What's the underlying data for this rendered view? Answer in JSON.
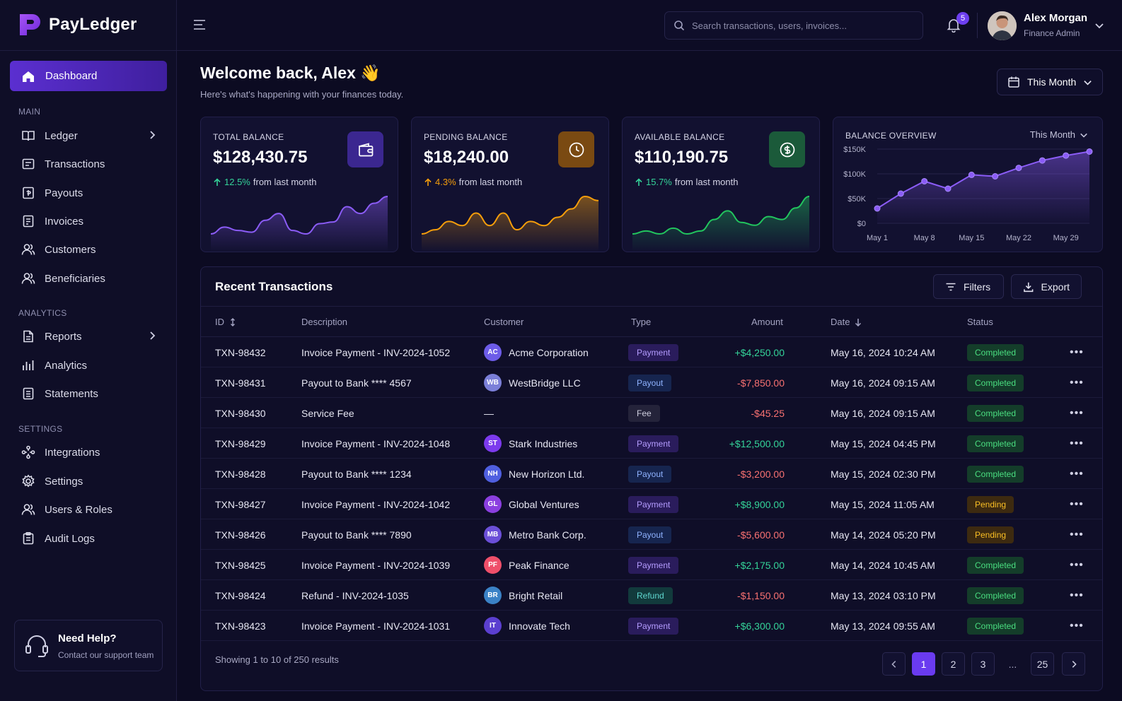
{
  "brand": {
    "name": "PayLedger"
  },
  "sidebar": {
    "active": {
      "label": "Dashboard",
      "icon": "home-icon"
    },
    "sections": {
      "main": "MAIN",
      "analytics": "ANALYTICS",
      "settings": "SETTINGS"
    },
    "items": {
      "ledger": "Ledger",
      "transactions": "Transactions",
      "payouts": "Payouts",
      "invoices": "Invoices",
      "customers": "Customers",
      "beneficiaries": "Beneficiaries",
      "reports": "Reports",
      "analytics": "Analytics",
      "statements": "Statements",
      "integrations": "Integrations",
      "settings": "Settings",
      "users_roles": "Users & Roles",
      "audit_logs": "Audit Logs"
    },
    "help": {
      "title": "Need Help?",
      "subtitle": "Contact our support team"
    }
  },
  "header": {
    "search_placeholder": "Search transactions, users, invoices...",
    "notification_count": "5",
    "user": {
      "name": "Alex Morgan",
      "role": "Finance Admin"
    }
  },
  "welcome": {
    "title": "Welcome back, Alex 👋",
    "subtitle": "Here's what's happening with your finances today.",
    "period": "This Month"
  },
  "cards": [
    {
      "label": "TOTAL BALANCE",
      "value": "$128,430.75",
      "delta": "12.5%",
      "delta_text": "from last month",
      "color": "#8b5cf6",
      "delta_color": "#34d399",
      "icon": "wallet-icon",
      "trend": [
        3,
        5,
        4,
        3.5,
        7,
        9,
        4,
        3,
        6,
        6.5,
        11,
        9,
        12,
        14
      ]
    },
    {
      "label": "PENDING BALANCE",
      "value": "$18,240.00",
      "delta": "4.3%",
      "delta_text": "from last month",
      "color": "#f59e0b",
      "delta_color": "#f59e0b",
      "icon": "clock-icon",
      "trend": [
        3,
        4,
        6,
        5,
        8,
        5,
        8,
        4,
        6,
        5,
        7,
        9,
        12,
        11
      ]
    },
    {
      "label": "AVAILABLE BALANCE",
      "value": "$110,190.75",
      "delta": "15.7%",
      "delta_text": "from last month",
      "color": "#22c55e",
      "delta_color": "#34d399",
      "icon": "dollar-icon",
      "trend": [
        4,
        5,
        4,
        6,
        4,
        5,
        9,
        12,
        8,
        7,
        10,
        9,
        13,
        17
      ]
    }
  ],
  "chart_data": {
    "type": "line",
    "title": "BALANCE OVERVIEW",
    "period": "This Month",
    "x": [
      "May 1",
      "May 4",
      "May 8",
      "May 11",
      "May 15",
      "May 18",
      "May 22",
      "May 25",
      "May 29",
      "May 31"
    ],
    "xticks": [
      "May 1",
      "May 8",
      "May 15",
      "May 22",
      "May 29"
    ],
    "yticks": [
      "$0",
      "$50K",
      "$100K",
      "$150K"
    ],
    "ylim": [
      0,
      150000
    ],
    "values": [
      30000,
      60000,
      85000,
      70000,
      98000,
      95000,
      112000,
      127000,
      137000,
      145000
    ],
    "color": "#8b5cf6"
  },
  "transactions": {
    "title": "Recent Transactions",
    "filters_label": "Filters",
    "export_label": "Export",
    "columns": {
      "id": "ID",
      "description": "Description",
      "customer": "Customer",
      "type": "Type",
      "amount": "Amount",
      "date": "Date",
      "status": "Status"
    },
    "rows": [
      {
        "id": "TXN-98432",
        "description": "Invoice Payment - INV-2024-1052",
        "initials": "AC",
        "avatar_color": "#6d5ce8",
        "customer": "Acme Corporation",
        "type": "Payment",
        "amount": "+$4,250.00",
        "amount_color": "#34d399",
        "date": "May 16, 2024 10:24 AM",
        "status": "Completed"
      },
      {
        "id": "TXN-98431",
        "description": "Payout to Bank **** 4567",
        "initials": "WB",
        "avatar_color": "#7b7fd8",
        "customer": "WestBridge LLC",
        "type": "Payout",
        "amount": "-$7,850.00",
        "amount_color": "#f87171",
        "date": "May 16, 2024 09:15 AM",
        "status": "Completed"
      },
      {
        "id": "TXN-98430",
        "description": "Service Fee",
        "initials": "",
        "avatar_color": "",
        "customer": "—",
        "type": "Fee",
        "amount": "-$45.25",
        "amount_color": "#f87171",
        "date": "May 16, 2024 09:15 AM",
        "status": "Completed"
      },
      {
        "id": "TXN-98429",
        "description": "Invoice Payment - INV-2024-1048",
        "initials": "ST",
        "avatar_color": "#7c3aed",
        "customer": "Stark Industries",
        "type": "Payment",
        "amount": "+$12,500.00",
        "amount_color": "#34d399",
        "date": "May 15, 2024 04:45 PM",
        "status": "Completed"
      },
      {
        "id": "TXN-98428",
        "description": "Payout to Bank **** 1234",
        "initials": "NH",
        "avatar_color": "#4f5fe0",
        "customer": "New Horizon Ltd.",
        "type": "Payout",
        "amount": "-$3,200.00",
        "amount_color": "#f87171",
        "date": "May 15, 2024 02:30 PM",
        "status": "Completed"
      },
      {
        "id": "TXN-98427",
        "description": "Invoice Payment - INV-2024-1042",
        "initials": "GL",
        "avatar_color": "#8b3fe0",
        "customer": "Global Ventures",
        "type": "Payment",
        "amount": "+$8,900.00",
        "amount_color": "#34d399",
        "date": "May 15, 2024 11:05 AM",
        "status": "Pending"
      },
      {
        "id": "TXN-98426",
        "description": "Payout to Bank **** 7890",
        "initials": "MB",
        "avatar_color": "#6b4fd8",
        "customer": "Metro Bank Corp.",
        "type": "Payout",
        "amount": "-$5,600.00",
        "amount_color": "#f87171",
        "date": "May 14, 2024 05:20 PM",
        "status": "Pending"
      },
      {
        "id": "TXN-98425",
        "description": "Invoice Payment - INV-2024-1039",
        "initials": "PF",
        "avatar_color": "#ef4f6a",
        "customer": "Peak Finance",
        "type": "Payment",
        "amount": "+$2,175.00",
        "amount_color": "#34d399",
        "date": "May 14, 2024 10:45 AM",
        "status": "Completed"
      },
      {
        "id": "TXN-98424",
        "description": "Refund - INV-2024-1035",
        "initials": "BR",
        "avatar_color": "#3b82c6",
        "customer": "Bright Retail",
        "type": "Refund",
        "amount": "-$1,150.00",
        "amount_color": "#f87171",
        "date": "May 13, 2024 03:10 PM",
        "status": "Completed"
      },
      {
        "id": "TXN-98423",
        "description": "Invoice Payment - INV-2024-1031",
        "initials": "IT",
        "avatar_color": "#5b3fd0",
        "customer": "Innovate Tech",
        "type": "Payment",
        "amount": "+$6,300.00",
        "amount_color": "#34d399",
        "date": "May 13, 2024 09:55 AM",
        "status": "Completed"
      }
    ],
    "showing": "Showing 1 to 10 of 250 results",
    "pages": [
      "1",
      "2",
      "3",
      "...",
      "25"
    ]
  }
}
